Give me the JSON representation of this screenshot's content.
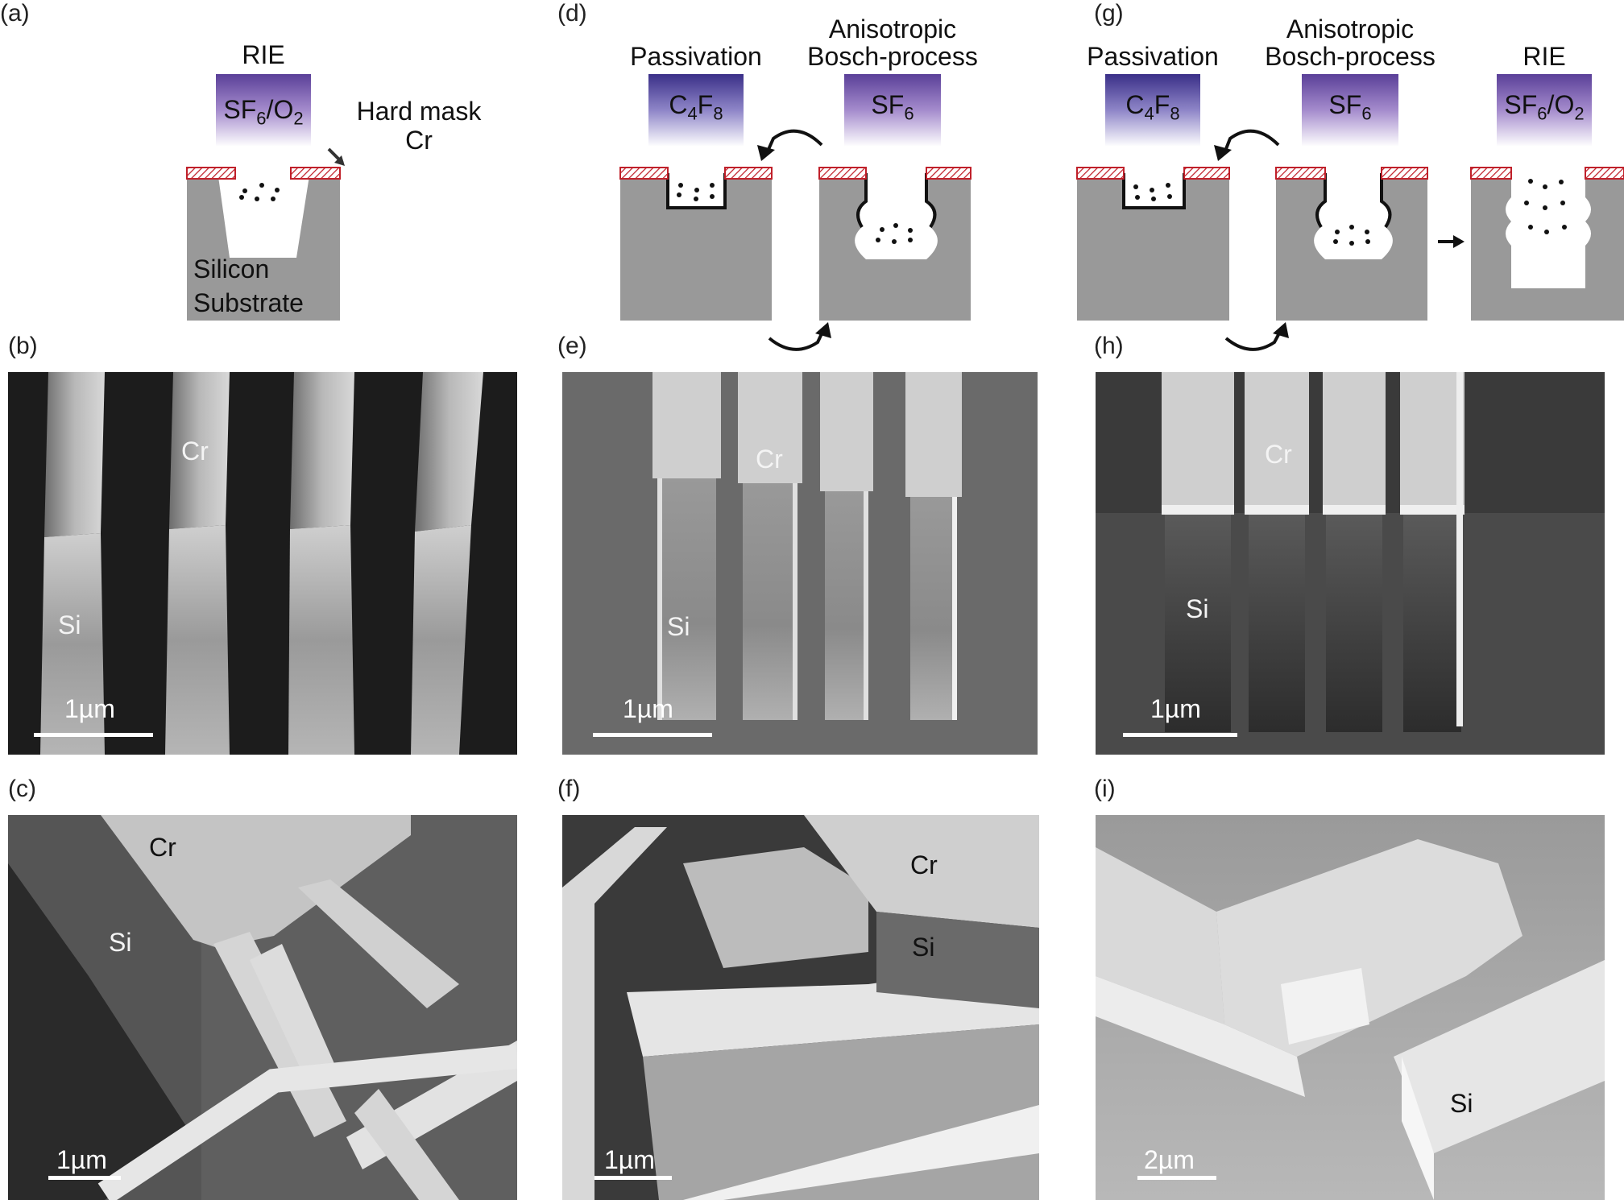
{
  "panel_labels": {
    "a": "(a)",
    "b": "(b)",
    "c": "(c)",
    "d": "(d)",
    "e": "(e)",
    "f": "(f)",
    "g": "(g)",
    "h": "(h)",
    "i": "(i)"
  },
  "schematics": {
    "a": {
      "process": "RIE",
      "gas": {
        "base": "SF",
        "sub1": "6",
        "mid": "/O",
        "sub2": "2"
      },
      "mask_label_1": "Hard mask",
      "mask_label_2": "Cr",
      "substrate_1": "Silicon",
      "substrate_2": "Substrate"
    },
    "d": {
      "step1": "Passivation",
      "step1_gas": {
        "base": "C",
        "sub1": "4",
        "mid": "F",
        "sub2": "8"
      },
      "step2_line1": "Anisotropic",
      "step2_line2": "Bosch-process",
      "step2_gas": {
        "base": "SF",
        "sub1": "6"
      }
    },
    "g": {
      "step1": "Passivation",
      "step1_gas": {
        "base": "C",
        "sub1": "4",
        "mid": "F",
        "sub2": "8"
      },
      "step2_line1": "Anisotropic",
      "step2_line2": "Bosch-process",
      "step2_gas": {
        "base": "SF",
        "sub1": "6"
      },
      "step3": "RIE",
      "step3_gas": {
        "base": "SF",
        "sub1": "6",
        "mid": "/O",
        "sub2": "2"
      }
    }
  },
  "micrographs": {
    "b": {
      "cr": "Cr",
      "si": "Si",
      "scale": "1µm"
    },
    "e": {
      "cr": "Cr",
      "si": "Si",
      "scale": "1µm"
    },
    "h": {
      "cr": "Cr",
      "si": "Si",
      "scale": "1µm"
    },
    "c": {
      "cr": "Cr",
      "si": "Si",
      "scale": "1µm"
    },
    "f": {
      "cr": "Cr",
      "si": "Si",
      "scale": "1µm"
    },
    "i": {
      "si": "Si",
      "scale": "2µm"
    }
  },
  "colors": {
    "substrate": "#999999",
    "mask": "#c0202a",
    "gas_top": "#6a4fa0"
  }
}
